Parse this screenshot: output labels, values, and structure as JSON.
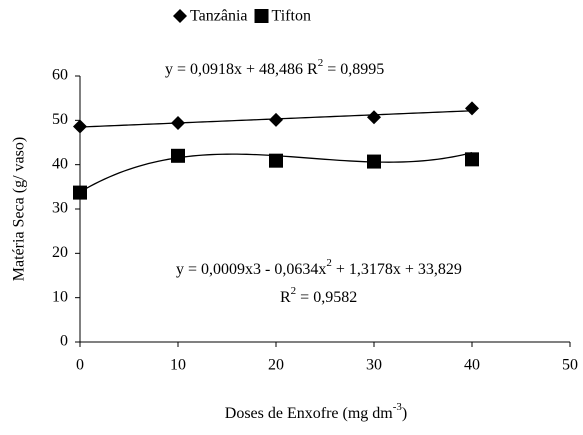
{
  "chart_data": {
    "type": "scatter",
    "x": [
      0,
      10,
      20,
      30,
      40
    ],
    "series": [
      {
        "name": "Tanzânia",
        "color": "#000000",
        "marker": "diamond",
        "values": [
          48.6,
          49.4,
          50.1,
          50.7,
          52.7
        ],
        "trend": [
          48.486,
          0.0918
        ]
      },
      {
        "name": "Tifton",
        "color": "#000000",
        "marker": "square",
        "values": [
          33.7,
          42.0,
          40.9,
          40.7,
          41.2
        ],
        "trend": [
          33.829,
          1.3178,
          -0.0634,
          0.0009
        ]
      }
    ],
    "xlim": [
      0,
      50
    ],
    "xticks": [
      0,
      10,
      20,
      30,
      40,
      50
    ],
    "ylim": [
      0,
      60
    ],
    "yticks": [
      0,
      10,
      20,
      30,
      40,
      50,
      60
    ],
    "grid": false,
    "y_label": "Matéria Seca (g/ vaso)",
    "x_label": [
      {
        "text": "Doses de Enxofre (mg dm"
      },
      {
        "sup": "-3"
      },
      {
        "text": ")"
      }
    ],
    "annotations": [
      [
        {
          "text": "y = 0,0918x + 48,486 R"
        },
        {
          "sup": "2"
        },
        {
          "text": " = 0,8995"
        }
      ],
      [
        {
          "text": "y = 0,0009x3 - 0,0634x"
        },
        {
          "sup": "2"
        },
        {
          "text": " + 1,3178x + 33,829"
        }
      ],
      [
        {
          "text": "R"
        },
        {
          "sup": "2"
        },
        {
          "text": " = 0,9582"
        }
      ]
    ],
    "legend": "top"
  }
}
